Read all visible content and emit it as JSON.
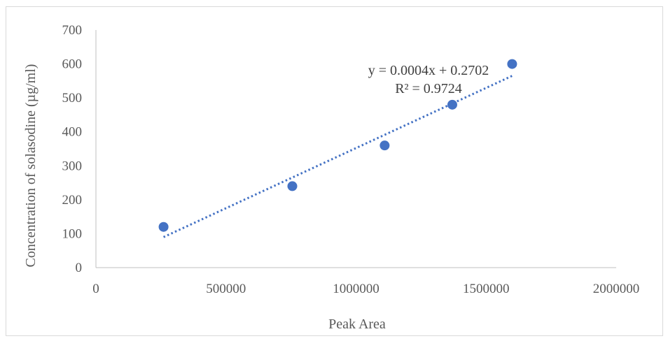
{
  "chart_data": {
    "type": "scatter",
    "title": "",
    "xlabel": "Peak Area",
    "ylabel": "Concentration of solasodine (µg/ml)",
    "xlim": [
      0,
      2000000
    ],
    "ylim": [
      0,
      700
    ],
    "x_ticks": [
      0,
      500000,
      1000000,
      1500000,
      2000000
    ],
    "x_tick_labels": [
      "0",
      "500000",
      "1000000",
      "1500000",
      "2000000"
    ],
    "y_ticks": [
      0,
      100,
      200,
      300,
      400,
      500,
      600,
      700
    ],
    "y_tick_labels": [
      "0",
      "100",
      "200",
      "300",
      "400",
      "500",
      "600",
      "700"
    ],
    "grid": false,
    "legend": "none",
    "series": [
      {
        "x": [
          260000,
          755000,
          1110000,
          1370000,
          1600000
        ],
        "y": [
          120,
          240,
          360,
          480,
          600
        ],
        "color": "#4472c4",
        "marker": "circle"
      }
    ],
    "trendline": {
      "type": "linear",
      "style": "dotted",
      "color": "#4472c4",
      "x_range": [
        260000,
        1600000
      ],
      "y_range": [
        90,
        565
      ]
    },
    "annotations": {
      "equation": "y = 0.0004x + 0.2702",
      "r_squared": "R² = 0.9724"
    }
  }
}
